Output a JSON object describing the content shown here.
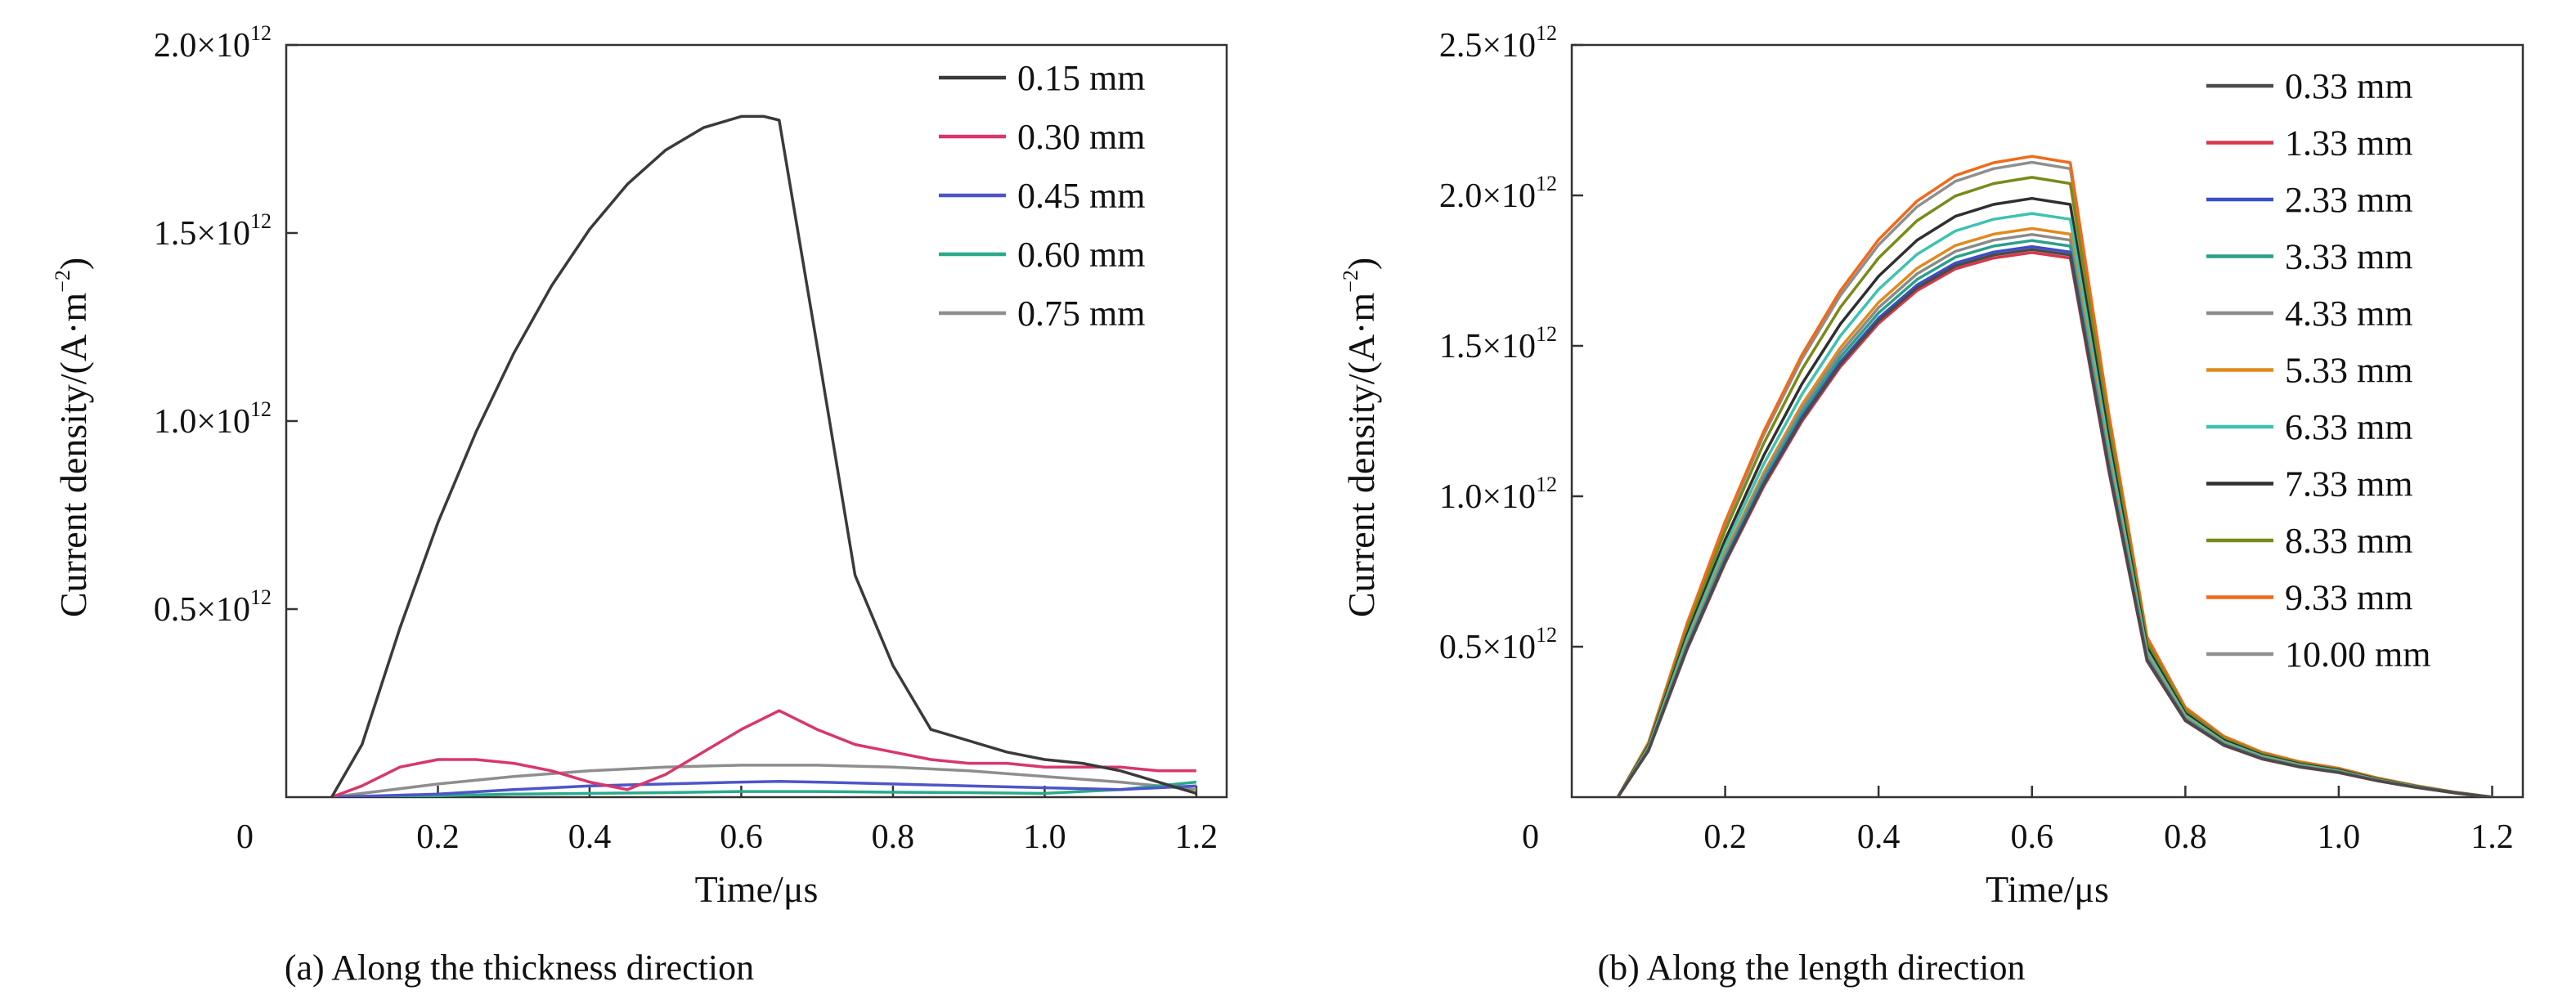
{
  "figure": {
    "caption_a": "(a) Along the thickness direction",
    "caption_b": "(b) Along the length direction"
  },
  "chart_data": [
    {
      "type": "line",
      "caption": "(a) Along the thickness direction",
      "xlabel": "Time/μs",
      "ylabel": "Current density/(A·m",
      "ylabel_sup": "−2",
      "ylabel_close": ")",
      "origin_label": "0",
      "xlim": [
        0.0,
        1.24
      ],
      "ylim": [
        0,
        2000000000000.0
      ],
      "xticks": [
        0.2,
        0.4,
        0.6,
        0.8,
        1.0,
        1.2
      ],
      "xtick_labels": [
        "0.2",
        "0.4",
        "0.6",
        "0.8",
        "1.0",
        "1.2"
      ],
      "yticks": [
        500000000000.0,
        1000000000000.0,
        1500000000000.0,
        2000000000000.0
      ],
      "ytick_labels": [
        {
          "base": "0.5×10",
          "exp": "12"
        },
        {
          "base": "1.0×10",
          "exp": "12"
        },
        {
          "base": "1.5×10",
          "exp": "12"
        },
        {
          "base": "2.0×10",
          "exp": "12"
        }
      ],
      "grid": false,
      "legend_position": "top-right",
      "series": [
        {
          "name": "0.15 mm",
          "color": "#3a3a3a",
          "x": [
            0.06,
            0.1,
            0.15,
            0.2,
            0.25,
            0.3,
            0.35,
            0.4,
            0.45,
            0.5,
            0.55,
            0.6,
            0.63,
            0.65,
            0.7,
            0.75,
            0.8,
            0.85,
            0.9,
            0.95,
            1.0,
            1.05,
            1.1,
            1.15,
            1.2
          ],
          "y": [
            0,
            140000000000.0,
            450000000000.0,
            730000000000.0,
            970000000000.0,
            1180000000000.0,
            1360000000000.0,
            1510000000000.0,
            1630000000000.0,
            1720000000000.0,
            1780000000000.0,
            1810000000000.0,
            1810000000000.0,
            1800000000000.0,
            1200000000000.0,
            590000000000.0,
            350000000000.0,
            180000000000.0,
            150000000000.0,
            120000000000.0,
            100000000000.0,
            90000000000.0,
            70000000000.0,
            40000000000.0,
            10000000000.0
          ]
        },
        {
          "name": "0.30 mm",
          "color": "#d8376a",
          "x": [
            0.06,
            0.1,
            0.15,
            0.2,
            0.25,
            0.3,
            0.35,
            0.4,
            0.45,
            0.5,
            0.55,
            0.6,
            0.65,
            0.7,
            0.75,
            0.8,
            0.85,
            0.9,
            0.95,
            1.0,
            1.05,
            1.1,
            1.15,
            1.2
          ],
          "y": [
            0,
            30000000000.0,
            80000000000.0,
            100000000000.0,
            100000000000.0,
            90000000000.0,
            70000000000.0,
            40000000000.0,
            20000000000.0,
            60000000000.0,
            120000000000.0,
            180000000000.0,
            230000000000.0,
            180000000000.0,
            140000000000.0,
            120000000000.0,
            100000000000.0,
            90000000000.0,
            90000000000.0,
            80000000000.0,
            80000000000.0,
            80000000000.0,
            70000000000.0,
            70000000000.0
          ]
        },
        {
          "name": "0.45 mm",
          "color": "#4f55c8",
          "x": [
            0.06,
            0.2,
            0.3,
            0.4,
            0.5,
            0.6,
            0.65,
            0.7,
            0.8,
            0.9,
            1.0,
            1.1,
            1.2
          ],
          "y": [
            0,
            8000000000.0,
            20000000000.0,
            30000000000.0,
            35000000000.0,
            40000000000.0,
            42000000000.0,
            40000000000.0,
            35000000000.0,
            30000000000.0,
            25000000000.0,
            20000000000.0,
            30000000000.0
          ]
        },
        {
          "name": "0.60 mm",
          "color": "#2aaa8a",
          "x": [
            0.06,
            0.2,
            0.3,
            0.4,
            0.5,
            0.6,
            0.7,
            0.8,
            0.9,
            1.0,
            1.1,
            1.2
          ],
          "y": [
            0,
            4000000000.0,
            8000000000.0,
            10000000000.0,
            12000000000.0,
            15000000000.0,
            15000000000.0,
            13000000000.0,
            12000000000.0,
            10000000000.0,
            20000000000.0,
            40000000000.0
          ]
        },
        {
          "name": "0.75 mm",
          "color": "#8e8e8e",
          "x": [
            0.06,
            0.1,
            0.2,
            0.3,
            0.4,
            0.5,
            0.6,
            0.7,
            0.8,
            0.9,
            1.0,
            1.1,
            1.2
          ],
          "y": [
            0,
            10000000000.0,
            35000000000.0,
            55000000000.0,
            70000000000.0,
            80000000000.0,
            85000000000.0,
            85000000000.0,
            80000000000.0,
            70000000000.0,
            55000000000.0,
            40000000000.0,
            20000000000.0
          ]
        }
      ]
    },
    {
      "type": "line",
      "caption": "(b) Along the length direction",
      "xlabel": "Time/μs",
      "ylabel": "Current density/(A·m",
      "ylabel_sup": "−2",
      "ylabel_close": ")",
      "origin_label": "0",
      "xlim": [
        0.0,
        1.24
      ],
      "ylim": [
        0,
        2500000000000.0
      ],
      "xticks": [
        0.2,
        0.4,
        0.6,
        0.8,
        1.0,
        1.2
      ],
      "xtick_labels": [
        "0.2",
        "0.4",
        "0.6",
        "0.8",
        "1.0",
        "1.2"
      ],
      "yticks": [
        500000000000.0,
        1000000000000.0,
        1500000000000.0,
        2000000000000.0,
        2500000000000.0
      ],
      "ytick_labels": [
        {
          "base": "0.5×10",
          "exp": "12"
        },
        {
          "base": "1.0×10",
          "exp": "12"
        },
        {
          "base": "1.5×10",
          "exp": "12"
        },
        {
          "base": "2.0×10",
          "exp": "12"
        },
        {
          "base": "2.5×10",
          "exp": "12"
        }
      ],
      "grid": false,
      "legend_position": "top-right",
      "x": [
        0.06,
        0.1,
        0.15,
        0.2,
        0.25,
        0.3,
        0.35,
        0.4,
        0.45,
        0.5,
        0.55,
        0.6,
        0.65,
        0.7,
        0.75,
        0.8,
        0.85,
        0.9,
        0.95,
        1.0,
        1.05,
        1.1,
        1.15,
        1.2
      ],
      "series": [
        {
          "name": "0.33 mm",
          "color": "#4a4a4a",
          "peak": 1820000000000.0
        },
        {
          "name": "1.33 mm",
          "color": "#d8374a",
          "peak": 1810000000000.0
        },
        {
          "name": "2.33 mm",
          "color": "#3b4fc4",
          "peak": 1830000000000.0
        },
        {
          "name": "3.33 mm",
          "color": "#2aa08a",
          "peak": 1850000000000.0
        },
        {
          "name": "4.33 mm",
          "color": "#8a8a8a",
          "peak": 1870000000000.0
        },
        {
          "name": "5.33 mm",
          "color": "#e08a1e",
          "peak": 1890000000000.0
        },
        {
          "name": "6.33 mm",
          "color": "#3fc2b0",
          "peak": 1940000000000.0
        },
        {
          "name": "7.33 mm",
          "color": "#2f2f2f",
          "peak": 1990000000000.0
        },
        {
          "name": "8.33 mm",
          "color": "#7a8a1a",
          "peak": 2060000000000.0
        },
        {
          "name": "9.33 mm",
          "color": "#f06a1a",
          "peak": 2130000000000.0
        },
        {
          "name": "10.00 mm",
          "color": "#8f8f8f",
          "peak": 2110000000000.0
        }
      ],
      "shape": [
        0,
        0.085,
        0.27,
        0.43,
        0.57,
        0.69,
        0.79,
        0.87,
        0.93,
        0.97,
        0.99,
        1.0,
        0.99,
        0.6,
        0.25,
        0.14,
        0.095,
        0.07,
        0.055,
        0.045,
        0.03,
        0.018,
        0.008,
        0
      ]
    }
  ]
}
